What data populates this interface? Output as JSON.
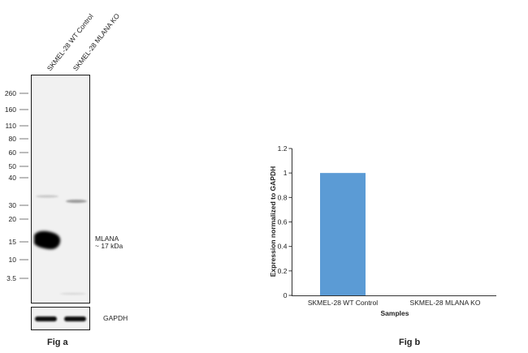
{
  "panel_a": {
    "lane_labels": [
      "SKMEL-28 WT Control",
      "SKMEL-28 MLANA KO"
    ],
    "mw_markers": [
      "260",
      "160",
      "110",
      "80",
      "60",
      "50",
      "40",
      "30",
      "20",
      "15",
      "10",
      "3.5"
    ],
    "band_label_line1": "MLANA",
    "band_label_line2": "~ 17 kDa",
    "loading_control_label": "GAPDH",
    "figure_label": "Fig a"
  },
  "panel_b": {
    "figure_label": "Fig b"
  },
  "chart_data": {
    "type": "bar",
    "categories": [
      "SKMEL-28 WT Control",
      "SKMEL-28 MLANA KO"
    ],
    "values": [
      1,
      0
    ],
    "xlabel": "Samples",
    "ylabel": "Expression normalized to GAPDH",
    "ylim": [
      0,
      1.2
    ],
    "yticks": [
      0,
      0.2,
      0.4,
      0.6,
      0.8,
      1,
      1.2
    ],
    "ytick_labels": [
      "0",
      "0.2",
      "0.4",
      "0.6",
      "0.8",
      "1",
      "1.2"
    ],
    "bar_color": "#5b9bd5",
    "grid": false,
    "legend": "none"
  }
}
